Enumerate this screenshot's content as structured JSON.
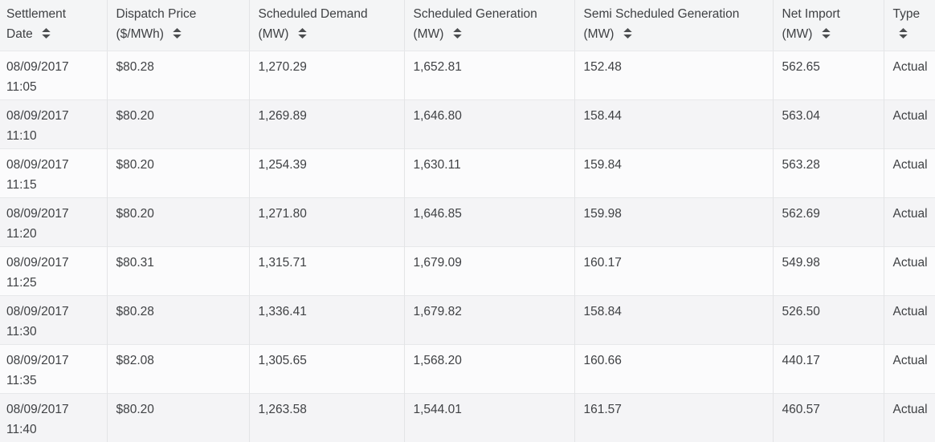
{
  "table": {
    "columns": [
      {
        "id": "settlement_date",
        "line1": "Settlement",
        "line2": "Date"
      },
      {
        "id": "dispatch_price",
        "line1": "Dispatch Price",
        "line2": "($/MWh)"
      },
      {
        "id": "scheduled_demand",
        "line1": "Scheduled Demand",
        "line2": "(MW)"
      },
      {
        "id": "scheduled_generation",
        "line1": "Scheduled Generation",
        "line2": "(MW)"
      },
      {
        "id": "semi_scheduled_generation",
        "line1": "Semi Scheduled Generation",
        "line2": "(MW)"
      },
      {
        "id": "net_import",
        "line1": "Net Import",
        "line2": "(MW)"
      },
      {
        "id": "type",
        "line1": "Type",
        "line2": ""
      }
    ],
    "rows": [
      {
        "date": "08/09/2017",
        "time": "11:05",
        "dispatch_price": "$80.28",
        "scheduled_demand": "1,270.29",
        "scheduled_generation": "1,652.81",
        "semi_scheduled_generation": "152.48",
        "net_import": "562.65",
        "type": "Actual"
      },
      {
        "date": "08/09/2017",
        "time": "11:10",
        "dispatch_price": "$80.20",
        "scheduled_demand": "1,269.89",
        "scheduled_generation": "1,646.80",
        "semi_scheduled_generation": "158.44",
        "net_import": "563.04",
        "type": "Actual"
      },
      {
        "date": "08/09/2017",
        "time": "11:15",
        "dispatch_price": "$80.20",
        "scheduled_demand": "1,254.39",
        "scheduled_generation": "1,630.11",
        "semi_scheduled_generation": "159.84",
        "net_import": "563.28",
        "type": "Actual"
      },
      {
        "date": "08/09/2017",
        "time": "11:20",
        "dispatch_price": "$80.20",
        "scheduled_demand": "1,271.80",
        "scheduled_generation": "1,646.85",
        "semi_scheduled_generation": "159.98",
        "net_import": "562.69",
        "type": "Actual"
      },
      {
        "date": "08/09/2017",
        "time": "11:25",
        "dispatch_price": "$80.31",
        "scheduled_demand": "1,315.71",
        "scheduled_generation": "1,679.09",
        "semi_scheduled_generation": "160.17",
        "net_import": "549.98",
        "type": "Actual"
      },
      {
        "date": "08/09/2017",
        "time": "11:30",
        "dispatch_price": "$80.28",
        "scheduled_demand": "1,336.41",
        "scheduled_generation": "1,679.82",
        "semi_scheduled_generation": "158.84",
        "net_import": "526.50",
        "type": "Actual"
      },
      {
        "date": "08/09/2017",
        "time": "11:35",
        "dispatch_price": "$82.08",
        "scheduled_demand": "1,305.65",
        "scheduled_generation": "1,568.20",
        "semi_scheduled_generation": "160.66",
        "net_import": "440.17",
        "type": "Actual"
      },
      {
        "date": "08/09/2017",
        "time": "11:40",
        "dispatch_price": "$80.20",
        "scheduled_demand": "1,263.58",
        "scheduled_generation": "1,544.01",
        "semi_scheduled_generation": "161.57",
        "net_import": "460.57",
        "type": "Actual"
      }
    ]
  },
  "colors": {
    "header_bg": "#f4f5f6",
    "row_odd_bg": "#fbfbfc",
    "row_even_bg": "#f4f4f6",
    "border_vertical": "#e3e4e6",
    "border_horizontal": "#e7e8ea",
    "text": "#3f4144",
    "sort_icon": "#4c4e50"
  }
}
